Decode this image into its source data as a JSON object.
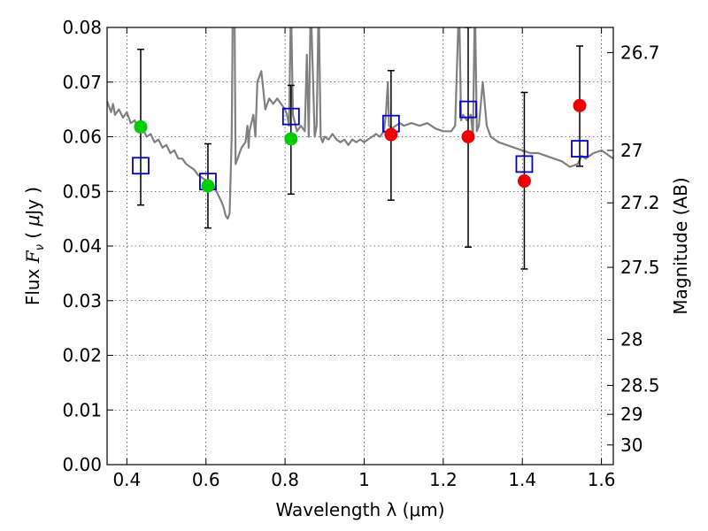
{
  "chart_data": {
    "type": "scatter",
    "xlabel": "Wavelength  λ (μm)",
    "ylabel": "Flux  F_ν  ( μJy )",
    "ylabel_right": "Magnitude (AB)",
    "xlim": [
      0.35,
      1.63
    ],
    "ylim": [
      0.0,
      0.08
    ],
    "x_ticks": [
      0.4,
      0.6,
      0.8,
      1.0,
      1.2,
      1.4,
      1.6
    ],
    "x_tick_labels": [
      "0.4",
      "0.6",
      "0.8",
      "1",
      "1.2",
      "1.4",
      "1.6"
    ],
    "y_ticks": [
      0.0,
      0.01,
      0.02,
      0.03,
      0.04,
      0.05,
      0.06,
      0.07,
      0.08
    ],
    "y_tick_labels": [
      "0.00",
      "0.01",
      "0.02",
      "0.03",
      "0.04",
      "0.05",
      "0.06",
      "0.07",
      "0.08"
    ],
    "right_ticks": [
      {
        "label": "26.7",
        "flux": 0.0754
      },
      {
        "label": "27",
        "flux": 0.0575
      },
      {
        "label": "27.2",
        "flux": 0.0479
      },
      {
        "label": "27.5",
        "flux": 0.0361
      },
      {
        "label": "28",
        "flux": 0.0229
      },
      {
        "label": "28.5",
        "flux": 0.0145
      },
      {
        "label": "29",
        "flux": 0.0092
      },
      {
        "label": "30",
        "flux": 0.0036
      }
    ],
    "grid": true,
    "series": [
      {
        "kind": "line",
        "color": "#808080",
        "points": [
          [
            0.35,
            0.0665
          ],
          [
            0.36,
            0.0645
          ],
          [
            0.365,
            0.066
          ],
          [
            0.37,
            0.064
          ],
          [
            0.38,
            0.065
          ],
          [
            0.39,
            0.0635
          ],
          [
            0.4,
            0.0645
          ],
          [
            0.41,
            0.0625
          ],
          [
            0.42,
            0.063
          ],
          [
            0.43,
            0.061
          ],
          [
            0.44,
            0.0615
          ],
          [
            0.45,
            0.06
          ],
          [
            0.46,
            0.0605
          ],
          [
            0.47,
            0.059
          ],
          [
            0.48,
            0.0595
          ],
          [
            0.49,
            0.058
          ],
          [
            0.5,
            0.0585
          ],
          [
            0.51,
            0.057
          ],
          [
            0.52,
            0.0575
          ],
          [
            0.53,
            0.056
          ],
          [
            0.54,
            0.056
          ],
          [
            0.55,
            0.055
          ],
          [
            0.56,
            0.0545
          ],
          [
            0.57,
            0.054
          ],
          [
            0.58,
            0.053
          ],
          [
            0.59,
            0.0525
          ],
          [
            0.6,
            0.052
          ],
          [
            0.61,
            0.0515
          ],
          [
            0.62,
            0.051
          ],
          [
            0.63,
            0.0495
          ],
          [
            0.64,
            0.048
          ],
          [
            0.645,
            0.047
          ],
          [
            0.65,
            0.0455
          ],
          [
            0.655,
            0.045
          ],
          [
            0.66,
            0.046
          ],
          [
            0.665,
            0.06
          ],
          [
            0.668,
            0.085
          ],
          [
            0.672,
            0.085
          ],
          [
            0.675,
            0.055
          ],
          [
            0.68,
            0.056
          ],
          [
            0.69,
            0.058
          ],
          [
            0.7,
            0.059
          ],
          [
            0.705,
            0.062
          ],
          [
            0.708,
            0.058
          ],
          [
            0.71,
            0.061
          ],
          [
            0.72,
            0.064
          ],
          [
            0.725,
            0.06
          ],
          [
            0.73,
            0.07
          ],
          [
            0.74,
            0.072
          ],
          [
            0.75,
            0.065
          ],
          [
            0.76,
            0.067
          ],
          [
            0.77,
            0.066
          ],
          [
            0.78,
            0.067
          ],
          [
            0.79,
            0.066
          ],
          [
            0.8,
            0.065
          ],
          [
            0.805,
            0.064
          ],
          [
            0.81,
            0.062
          ],
          [
            0.815,
            0.085
          ],
          [
            0.82,
            0.064
          ],
          [
            0.83,
            0.061
          ],
          [
            0.84,
            0.062
          ],
          [
            0.85,
            0.061
          ],
          [
            0.855,
            0.075
          ],
          [
            0.86,
            0.06
          ],
          [
            0.865,
            0.085
          ],
          [
            0.875,
            0.06
          ],
          [
            0.88,
            0.062
          ],
          [
            0.885,
            0.085
          ],
          [
            0.89,
            0.06
          ],
          [
            0.895,
            0.059
          ],
          [
            0.9,
            0.06
          ],
          [
            0.91,
            0.0595
          ],
          [
            0.92,
            0.0605
          ],
          [
            0.93,
            0.0595
          ],
          [
            0.94,
            0.059
          ],
          [
            0.95,
            0.0595
          ],
          [
            0.96,
            0.0585
          ],
          [
            0.97,
            0.0595
          ],
          [
            0.98,
            0.059
          ],
          [
            0.99,
            0.0595
          ],
          [
            1.0,
            0.059
          ],
          [
            1.01,
            0.0595
          ],
          [
            1.02,
            0.06
          ],
          [
            1.03,
            0.0605
          ],
          [
            1.04,
            0.06
          ],
          [
            1.05,
            0.061
          ],
          [
            1.055,
            0.064
          ],
          [
            1.06,
            0.07
          ],
          [
            1.063,
            0.062
          ],
          [
            1.07,
            0.0615
          ],
          [
            1.08,
            0.062
          ],
          [
            1.09,
            0.0625
          ],
          [
            1.1,
            0.062
          ],
          [
            1.12,
            0.0625
          ],
          [
            1.14,
            0.062
          ],
          [
            1.16,
            0.0625
          ],
          [
            1.18,
            0.0615
          ],
          [
            1.2,
            0.061
          ],
          [
            1.22,
            0.061
          ],
          [
            1.23,
            0.062
          ],
          [
            1.24,
            0.085
          ],
          [
            1.245,
            0.063
          ],
          [
            1.25,
            0.064
          ],
          [
            1.26,
            0.063
          ],
          [
            1.27,
            0.064
          ],
          [
            1.275,
            0.06
          ],
          [
            1.28,
            0.085
          ],
          [
            1.285,
            0.061
          ],
          [
            1.29,
            0.062
          ],
          [
            1.3,
            0.07
          ],
          [
            1.31,
            0.062
          ],
          [
            1.32,
            0.06
          ],
          [
            1.34,
            0.059
          ],
          [
            1.36,
            0.0585
          ],
          [
            1.38,
            0.058
          ],
          [
            1.4,
            0.0575
          ],
          [
            1.42,
            0.057
          ],
          [
            1.44,
            0.057
          ],
          [
            1.46,
            0.0565
          ],
          [
            1.48,
            0.056
          ],
          [
            1.5,
            0.0555
          ],
          [
            1.52,
            0.0545
          ],
          [
            1.54,
            0.055
          ],
          [
            1.55,
            0.0565
          ],
          [
            1.56,
            0.056
          ],
          [
            1.58,
            0.057
          ],
          [
            1.6,
            0.0575
          ],
          [
            1.61,
            0.057
          ],
          [
            1.62,
            0.0565
          ],
          [
            1.63,
            0.056
          ]
        ]
      },
      {
        "kind": "error_bar",
        "color": "#000000",
        "points": [
          {
            "x": 0.435,
            "low": 0.0475,
            "high": 0.076
          },
          {
            "x": 0.605,
            "low": 0.0433,
            "high": 0.0587
          },
          {
            "x": 0.815,
            "low": 0.0495,
            "high": 0.0694
          },
          {
            "x": 1.068,
            "low": 0.0484,
            "high": 0.0721
          },
          {
            "x": 1.263,
            "low": 0.0398,
            "high": 0.08
          },
          {
            "x": 1.405,
            "low": 0.0358,
            "high": 0.0681
          },
          {
            "x": 1.545,
            "low": 0.0546,
            "high": 0.0766
          }
        ]
      },
      {
        "kind": "marker",
        "marker": "square-open",
        "color": "#0000cc",
        "points": [
          [
            0.435,
            0.0547
          ],
          [
            0.605,
            0.0518
          ],
          [
            0.815,
            0.0637
          ],
          [
            1.068,
            0.0624
          ],
          [
            1.263,
            0.065
          ],
          [
            1.405,
            0.055
          ],
          [
            1.545,
            0.0578
          ]
        ]
      },
      {
        "kind": "marker",
        "marker": "circle-filled",
        "color": "#00cc00",
        "points": [
          [
            0.435,
            0.0618
          ],
          [
            0.605,
            0.051
          ],
          [
            0.815,
            0.0596
          ]
        ]
      },
      {
        "kind": "marker",
        "marker": "circle-filled",
        "color": "#ee0000",
        "points": [
          [
            1.068,
            0.0604
          ],
          [
            1.263,
            0.06
          ],
          [
            1.405,
            0.0519
          ],
          [
            1.545,
            0.0657
          ]
        ]
      }
    ]
  }
}
